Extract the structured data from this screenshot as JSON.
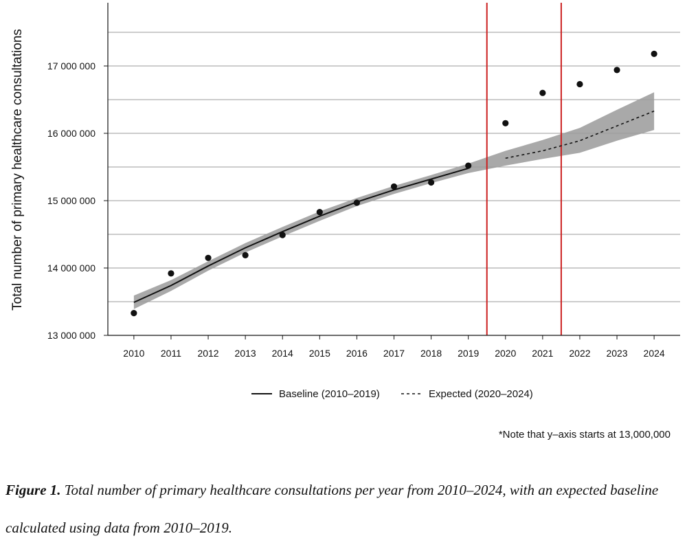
{
  "chart_data": {
    "type": "line",
    "ylabel": "Total number of primary healthcare consultations",
    "xlabel": "",
    "ylim": [
      13000000,
      17500000
    ],
    "xlim": [
      2009.3,
      2024.7
    ],
    "yticks": [
      13000000,
      14000000,
      15000000,
      16000000,
      17000000
    ],
    "ytick_labels": [
      "13 000 000",
      "14 000 000",
      "15 000 000",
      "16 000 000",
      "17 000 000"
    ],
    "xticks": [
      2010,
      2011,
      2012,
      2013,
      2014,
      2015,
      2016,
      2017,
      2018,
      2019,
      2020,
      2021,
      2022,
      2023,
      2024
    ],
    "gridlines_y": [
      13000000,
      13500000,
      14000000,
      14500000,
      15000000,
      15500000,
      16000000,
      16500000,
      17000000,
      17500000
    ],
    "grid": true,
    "observed": {
      "x": [
        2010,
        2011,
        2012,
        2013,
        2014,
        2015,
        2016,
        2017,
        2018,
        2019,
        2020,
        2021,
        2022,
        2023,
        2024
      ],
      "y": [
        13330000,
        13920000,
        14150000,
        14190000,
        14490000,
        14830000,
        14970000,
        15210000,
        15270000,
        15520000,
        16150000,
        16600000,
        16730000,
        16940000,
        17180000
      ]
    },
    "series": [
      {
        "name": "Baseline (2010–2019)",
        "style": "solid",
        "x": [
          2010,
          2011,
          2012,
          2013,
          2014,
          2015,
          2016,
          2017,
          2018,
          2019
        ],
        "y": [
          13490000,
          13740000,
          14030000,
          14300000,
          14540000,
          14770000,
          14980000,
          15160000,
          15320000,
          15480000
        ]
      },
      {
        "name": "Expected (2020–2024)",
        "style": "dashed",
        "x": [
          2020,
          2021,
          2022,
          2023,
          2024
        ],
        "y": [
          15630000,
          15740000,
          15890000,
          16110000,
          16330000
        ]
      }
    ],
    "confidence_band": {
      "x": [
        2010,
        2011,
        2012,
        2013,
        2014,
        2015,
        2016,
        2017,
        2018,
        2019,
        2020,
        2021,
        2022,
        2023,
        2024
      ],
      "lower": [
        13390000,
        13660000,
        13960000,
        14230000,
        14470000,
        14700000,
        14920000,
        15100000,
        15260000,
        15410000,
        15520000,
        15620000,
        15710000,
        15890000,
        16050000
      ],
      "upper": [
        13590000,
        13820000,
        14100000,
        14370000,
        14610000,
        14840000,
        15040000,
        15220000,
        15380000,
        15550000,
        15740000,
        15900000,
        16080000,
        16350000,
        16610000
      ]
    },
    "vertical_lines": [
      2019.5,
      2021.5
    ],
    "colors": {
      "points": "#111111",
      "band": "#9a9a9a",
      "vline": "#cc1f1f",
      "grid": "#999999",
      "line": "#111111"
    },
    "legend_placement": "bottom-center"
  },
  "note": "*Note that y–axis starts at 13,000,000",
  "caption": {
    "label": "Figure 1.",
    "text": "Total number of primary healthcare consultations per year from 2010–2024, with an expected baseline calculated using data from 2010–2019."
  }
}
